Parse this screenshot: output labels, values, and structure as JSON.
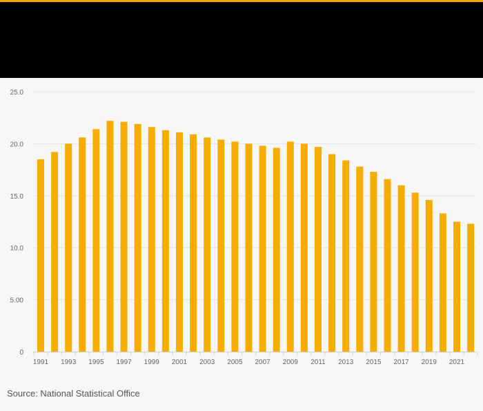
{
  "colors": {
    "accent": "#f5a800",
    "bar": "#f7ad00",
    "header": "#000000",
    "background": "#f7f7f7",
    "grid": "#e2e2e2",
    "tick_text": "#666666"
  },
  "source": "Source: National Statistical Office",
  "chart_data": {
    "type": "bar",
    "title": "",
    "xlabel": "",
    "ylabel": "",
    "ylim": [
      0,
      25
    ],
    "y_ticks": [
      0,
      5,
      10,
      15,
      20,
      25
    ],
    "y_tick_labels": [
      "0",
      "5.00",
      "10.0",
      "15.0",
      "20.0",
      "25.0"
    ],
    "categories": [
      "1991",
      "1992",
      "1993",
      "1994",
      "1995",
      "1996",
      "1997",
      "1998",
      "1999",
      "2000",
      "2001",
      "2002",
      "2003",
      "2004",
      "2005",
      "2006",
      "2007",
      "2008",
      "2009",
      "2010",
      "2011",
      "2012",
      "2013",
      "2014",
      "2015",
      "2016",
      "2017",
      "2018",
      "2019",
      "2020",
      "2021",
      "2022"
    ],
    "x_tick_labels": [
      "1991",
      "1993",
      "1995",
      "1997",
      "1999",
      "2001",
      "2003",
      "2005",
      "2007",
      "2009",
      "2011",
      "2013",
      "2015",
      "2017",
      "2019",
      "2021"
    ],
    "values": [
      18.5,
      19.2,
      20.0,
      20.6,
      21.4,
      22.2,
      22.1,
      21.9,
      21.6,
      21.3,
      21.1,
      20.9,
      20.6,
      20.4,
      20.2,
      20.0,
      19.8,
      19.6,
      20.2,
      20.0,
      19.7,
      19.0,
      18.4,
      17.8,
      17.3,
      16.6,
      16.0,
      15.3,
      14.6,
      13.3,
      12.5,
      12.3
    ],
    "grid": true,
    "legend": "none"
  }
}
